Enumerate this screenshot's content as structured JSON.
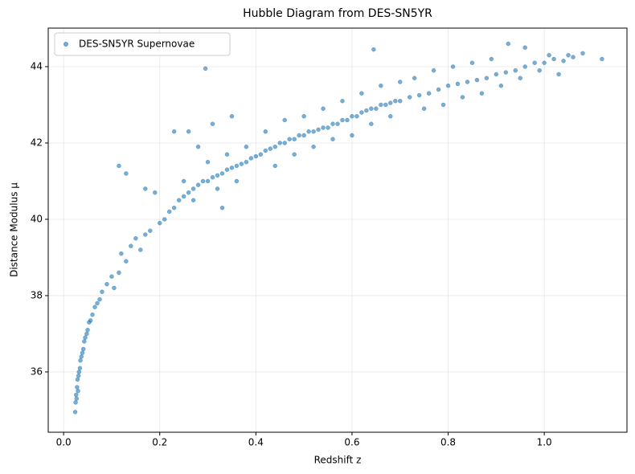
{
  "chart_data": {
    "type": "scatter",
    "title": "Hubble Diagram from DES-SN5YR",
    "x_label": "Redshift z",
    "y_label": "Distance Modulus μ",
    "xlim": [
      -0.032,
      1.172
    ],
    "ylim": [
      34.42,
      45.01
    ],
    "xticks": [
      {
        "value": 0,
        "label": "0.0"
      },
      0.2,
      0.4,
      0.6,
      0.8,
      {
        "value": 1,
        "label": "1.0"
      }
    ],
    "yticks": [
      36,
      38,
      40,
      42,
      44
    ],
    "grid": true,
    "legend": "upper left",
    "series": [
      {
        "name": "DES-SN5YR Supernovae",
        "color": "#1f77b4",
        "x": [
          0.024,
          0.025,
          0.026,
          0.027,
          0.028,
          0.029,
          0.03,
          0.031,
          0.032,
          0.034,
          0.035,
          0.037,
          0.039,
          0.041,
          0.043,
          0.045,
          0.048,
          0.05,
          0.053,
          0.056,
          0.06,
          0.065,
          0.07,
          0.075,
          0.08,
          0.09,
          0.1,
          0.105,
          0.115,
          0.12,
          0.13,
          0.14,
          0.15,
          0.16,
          0.17,
          0.18,
          0.115,
          0.13,
          0.17,
          0.19,
          0.2,
          0.21,
          0.22,
          0.23,
          0.24,
          0.25,
          0.26,
          0.27,
          0.28,
          0.29,
          0.3,
          0.31,
          0.32,
          0.33,
          0.34,
          0.35,
          0.36,
          0.37,
          0.38,
          0.39,
          0.4,
          0.25,
          0.27,
          0.3,
          0.32,
          0.34,
          0.36,
          0.38,
          0.295,
          0.23,
          0.26,
          0.28,
          0.33,
          0.31,
          0.35,
          0.41,
          0.42,
          0.43,
          0.44,
          0.45,
          0.46,
          0.47,
          0.48,
          0.49,
          0.5,
          0.51,
          0.52,
          0.53,
          0.54,
          0.55,
          0.56,
          0.57,
          0.58,
          0.59,
          0.6,
          0.61,
          0.62,
          0.63,
          0.64,
          0.65,
          0.66,
          0.67,
          0.68,
          0.69,
          0.7,
          0.42,
          0.44,
          0.46,
          0.48,
          0.5,
          0.52,
          0.54,
          0.56,
          0.58,
          0.6,
          0.62,
          0.64,
          0.645,
          0.66,
          0.68,
          0.7,
          0.72,
          0.74,
          0.76,
          0.78,
          0.8,
          0.82,
          0.84,
          0.86,
          0.88,
          0.9,
          0.92,
          0.94,
          0.96,
          0.98,
          1.0,
          1.02,
          1.04,
          1.06,
          1.08,
          1.12,
          0.73,
          0.75,
          0.77,
          0.79,
          0.81,
          0.83,
          0.85,
          0.87,
          0.89,
          0.91,
          0.925,
          0.95,
          0.96,
          0.99,
          1.01,
          1.03,
          1.05
        ],
        "values": [
          34.95,
          35.2,
          35.4,
          35.3,
          35.6,
          35.8,
          35.5,
          35.9,
          36.0,
          36.1,
          36.3,
          36.4,
          36.5,
          36.6,
          36.8,
          36.9,
          37.0,
          37.1,
          37.3,
          37.35,
          37.5,
          37.7,
          37.8,
          37.9,
          38.1,
          38.3,
          38.5,
          38.2,
          38.6,
          39.1,
          38.9,
          39.3,
          39.5,
          39.2,
          39.6,
          39.7,
          41.4,
          41.2,
          40.8,
          40.7,
          39.9,
          40.0,
          40.2,
          40.3,
          40.5,
          40.6,
          40.7,
          40.8,
          40.9,
          41.0,
          41.0,
          41.1,
          41.15,
          41.2,
          41.3,
          41.35,
          41.4,
          41.45,
          41.5,
          41.6,
          41.65,
          41.0,
          40.5,
          41.5,
          40.8,
          41.7,
          41.0,
          41.9,
          43.95,
          42.3,
          42.3,
          41.9,
          40.3,
          42.5,
          42.7,
          41.7,
          41.8,
          41.85,
          41.9,
          42.0,
          42.0,
          42.1,
          42.1,
          42.2,
          42.2,
          42.3,
          42.3,
          42.35,
          42.4,
          42.4,
          42.5,
          42.5,
          42.6,
          42.6,
          42.7,
          42.7,
          42.8,
          42.85,
          42.9,
          42.9,
          43.0,
          43.0,
          43.05,
          43.1,
          43.1,
          42.3,
          41.4,
          42.6,
          41.7,
          42.7,
          41.9,
          42.9,
          42.1,
          43.1,
          42.2,
          43.3,
          42.5,
          44.45,
          43.5,
          42.7,
          43.6,
          43.2,
          43.25,
          43.3,
          43.4,
          43.5,
          43.55,
          43.6,
          43.65,
          43.7,
          43.8,
          43.85,
          43.9,
          44.0,
          44.1,
          44.1,
          44.2,
          44.15,
          44.25,
          44.35,
          44.2,
          43.7,
          42.9,
          43.9,
          43.0,
          44.0,
          43.2,
          44.1,
          43.3,
          44.2,
          43.5,
          44.6,
          43.7,
          44.5,
          43.9,
          44.3,
          43.8,
          44.3
        ]
      }
    ]
  }
}
